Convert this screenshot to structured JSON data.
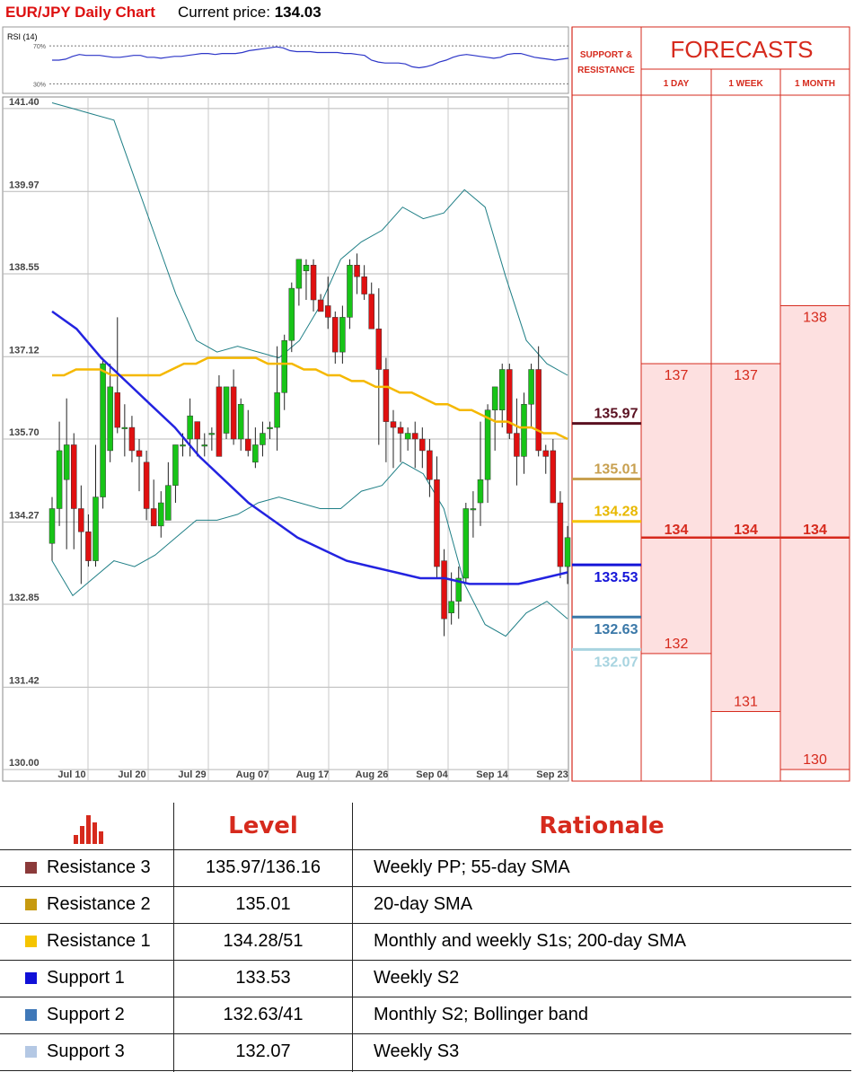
{
  "header": {
    "title": "EUR/JPY Daily Chart",
    "price_label": "Current price:",
    "price_value": "134.03"
  },
  "rsi": {
    "label": "RSI (14)",
    "levels": [
      "70%",
      "30%"
    ],
    "values": [
      55,
      55,
      56,
      59,
      61,
      60,
      60,
      60,
      59,
      58,
      58,
      59,
      60,
      60,
      58,
      58,
      57,
      58,
      59,
      59,
      60,
      61,
      62,
      62,
      61,
      62,
      62,
      62,
      63,
      65,
      66,
      67,
      68,
      69,
      68,
      65,
      64,
      64,
      64,
      63,
      63,
      63,
      63,
      62,
      62,
      61,
      60,
      55,
      53,
      52,
      52,
      52,
      51,
      48,
      47,
      48,
      50,
      53,
      55,
      58,
      60,
      61,
      60,
      59,
      58,
      57,
      58,
      61,
      62,
      62,
      60,
      58,
      57,
      56,
      55,
      56,
      57
    ]
  },
  "chart_data": {
    "type": "candlestick",
    "title": "EUR/JPY Daily Chart",
    "ylim": [
      129.8,
      141.6
    ],
    "yticks": [
      "141.40",
      "139.97",
      "138.55",
      "137.12",
      "135.70",
      "134.27",
      "132.85",
      "131.42",
      "130.00"
    ],
    "xticks": [
      "Jul 10",
      "Jul 20",
      "Jul 29",
      "Aug 07",
      "Aug 17",
      "Aug 26",
      "Sep 04",
      "Sep 14",
      "Sep 23"
    ],
    "candles": [
      {
        "o": 133.9,
        "h": 134.7,
        "l": 133.6,
        "c": 134.5
      },
      {
        "o": 134.5,
        "h": 136.0,
        "l": 134.2,
        "c": 135.5
      },
      {
        "o": 135.0,
        "h": 136.4,
        "l": 133.8,
        "c": 135.6
      },
      {
        "o": 135.6,
        "h": 135.8,
        "l": 133.8,
        "c": 134.5
      },
      {
        "o": 134.5,
        "h": 134.9,
        "l": 133.2,
        "c": 134.1
      },
      {
        "o": 134.1,
        "h": 134.4,
        "l": 133.5,
        "c": 133.6
      },
      {
        "o": 133.6,
        "h": 135.6,
        "l": 133.5,
        "c": 134.7
      },
      {
        "o": 134.7,
        "h": 137.1,
        "l": 134.5,
        "c": 137.0
      },
      {
        "o": 135.5,
        "h": 137.0,
        "l": 135.3,
        "c": 136.6
      },
      {
        "o": 136.5,
        "h": 137.8,
        "l": 135.8,
        "c": 135.9
      },
      {
        "o": 135.9,
        "h": 136.3,
        "l": 135.4,
        "c": 135.9
      },
      {
        "o": 135.9,
        "h": 136.1,
        "l": 135.3,
        "c": 135.5
      },
      {
        "o": 135.5,
        "h": 135.7,
        "l": 134.8,
        "c": 135.4
      },
      {
        "o": 135.3,
        "h": 135.5,
        "l": 134.3,
        "c": 134.5
      },
      {
        "o": 134.5,
        "h": 135.0,
        "l": 134.2,
        "c": 134.2
      },
      {
        "o": 134.2,
        "h": 134.8,
        "l": 134.0,
        "c": 134.6
      },
      {
        "o": 134.3,
        "h": 135.3,
        "l": 134.3,
        "c": 134.9
      },
      {
        "o": 134.9,
        "h": 135.6,
        "l": 134.6,
        "c": 135.6
      },
      {
        "o": 135.6,
        "h": 135.8,
        "l": 135.4,
        "c": 135.6
      },
      {
        "o": 135.7,
        "h": 136.4,
        "l": 135.4,
        "c": 136.1
      },
      {
        "o": 136.0,
        "h": 135.9,
        "l": 135.4,
        "c": 135.7
      },
      {
        "o": 135.6,
        "h": 135.8,
        "l": 135.4,
        "c": 135.6
      },
      {
        "o": 135.8,
        "h": 135.9,
        "l": 135.5,
        "c": 135.8
      },
      {
        "o": 136.6,
        "h": 136.8,
        "l": 135.5,
        "c": 135.4
      },
      {
        "o": 135.8,
        "h": 136.6,
        "l": 135.7,
        "c": 136.6
      },
      {
        "o": 136.6,
        "h": 136.9,
        "l": 135.6,
        "c": 135.7
      },
      {
        "o": 135.7,
        "h": 136.4,
        "l": 135.5,
        "c": 136.3
      },
      {
        "o": 135.7,
        "h": 136.2,
        "l": 135.4,
        "c": 135.5
      },
      {
        "o": 135.3,
        "h": 135.9,
        "l": 135.2,
        "c": 135.6
      },
      {
        "o": 135.6,
        "h": 136.0,
        "l": 135.4,
        "c": 135.8
      },
      {
        "o": 135.9,
        "h": 136.0,
        "l": 135.7,
        "c": 135.9
      },
      {
        "o": 135.9,
        "h": 137.3,
        "l": 135.5,
        "c": 136.5
      },
      {
        "o": 136.5,
        "h": 137.5,
        "l": 136.2,
        "c": 137.4
      },
      {
        "o": 137.4,
        "h": 138.4,
        "l": 137.2,
        "c": 138.3
      },
      {
        "o": 138.3,
        "h": 138.8,
        "l": 138.0,
        "c": 138.8
      },
      {
        "o": 138.6,
        "h": 138.8,
        "l": 138.1,
        "c": 138.7
      },
      {
        "o": 138.7,
        "h": 138.8,
        "l": 137.9,
        "c": 138.1
      },
      {
        "o": 138.1,
        "h": 138.2,
        "l": 137.9,
        "c": 137.9
      },
      {
        "o": 138.0,
        "h": 138.5,
        "l": 137.6,
        "c": 137.8
      },
      {
        "o": 137.8,
        "h": 137.9,
        "l": 137.0,
        "c": 137.2
      },
      {
        "o": 137.2,
        "h": 138.0,
        "l": 137.0,
        "c": 137.8
      },
      {
        "o": 137.8,
        "h": 138.8,
        "l": 137.6,
        "c": 138.7
      },
      {
        "o": 138.7,
        "h": 138.9,
        "l": 138.2,
        "c": 138.5
      },
      {
        "o": 138.5,
        "h": 138.7,
        "l": 138.1,
        "c": 138.2
      },
      {
        "o": 138.2,
        "h": 138.4,
        "l": 137.6,
        "c": 137.6
      },
      {
        "o": 137.6,
        "h": 138.3,
        "l": 135.6,
        "c": 136.9
      },
      {
        "o": 136.9,
        "h": 137.1,
        "l": 135.3,
        "c": 136.0
      },
      {
        "o": 136.0,
        "h": 136.2,
        "l": 135.2,
        "c": 135.9
      },
      {
        "o": 135.9,
        "h": 136.0,
        "l": 135.3,
        "c": 135.8
      },
      {
        "o": 135.7,
        "h": 135.9,
        "l": 135.5,
        "c": 135.8
      },
      {
        "o": 135.8,
        "h": 136.0,
        "l": 135.2,
        "c": 135.7
      },
      {
        "o": 135.7,
        "h": 135.9,
        "l": 135.2,
        "c": 135.5
      },
      {
        "o": 135.5,
        "h": 135.7,
        "l": 134.7,
        "c": 135.0
      },
      {
        "o": 135.0,
        "h": 135.4,
        "l": 133.3,
        "c": 133.5
      },
      {
        "o": 133.6,
        "h": 133.8,
        "l": 132.3,
        "c": 132.6
      },
      {
        "o": 132.7,
        "h": 133.4,
        "l": 132.5,
        "c": 132.9
      },
      {
        "o": 132.9,
        "h": 133.5,
        "l": 132.6,
        "c": 133.3
      },
      {
        "o": 133.3,
        "h": 134.6,
        "l": 133.2,
        "c": 134.5
      },
      {
        "o": 134.5,
        "h": 134.8,
        "l": 134.0,
        "c": 134.5
      },
      {
        "o": 134.6,
        "h": 136.0,
        "l": 134.2,
        "c": 135.0
      },
      {
        "o": 135.0,
        "h": 136.3,
        "l": 134.6,
        "c": 136.2
      },
      {
        "o": 136.2,
        "h": 136.6,
        "l": 135.5,
        "c": 136.6
      },
      {
        "o": 136.2,
        "h": 137.0,
        "l": 135.9,
        "c": 136.9
      },
      {
        "o": 136.9,
        "h": 137.0,
        "l": 135.7,
        "c": 135.8
      },
      {
        "o": 135.8,
        "h": 136.4,
        "l": 134.9,
        "c": 135.4
      },
      {
        "o": 135.4,
        "h": 136.5,
        "l": 135.1,
        "c": 136.3
      },
      {
        "o": 136.3,
        "h": 137.0,
        "l": 135.9,
        "c": 136.9
      },
      {
        "o": 136.9,
        "h": 137.3,
        "l": 135.4,
        "c": 135.5
      },
      {
        "o": 135.5,
        "h": 135.6,
        "l": 135.1,
        "c": 135.4
      },
      {
        "o": 135.5,
        "h": 135.7,
        "l": 134.6,
        "c": 134.6
      },
      {
        "o": 134.6,
        "h": 134.8,
        "l": 133.3,
        "c": 133.5
      },
      {
        "o": 133.5,
        "h": 134.2,
        "l": 133.2,
        "c": 134.0
      }
    ],
    "sma55": [
      136.8,
      136.8,
      136.9,
      136.9,
      136.9,
      136.8,
      136.8,
      136.8,
      136.8,
      136.8,
      136.9,
      137.0,
      137.0,
      137.1,
      137.1,
      137.1,
      137.1,
      137.1,
      137.0,
      137.0,
      137.0,
      136.9,
      136.9,
      136.8,
      136.8,
      136.7,
      136.7,
      136.6,
      136.6,
      136.5,
      136.5,
      136.4,
      136.3,
      136.3,
      136.2,
      136.2,
      136.1,
      136.0,
      136.0,
      135.9,
      135.9,
      135.8,
      135.8,
      135.7
    ],
    "sma200": [
      137.9,
      137.6,
      137.1,
      136.7,
      136.3,
      135.9,
      135.4,
      135.0,
      134.6,
      134.3,
      134.0,
      133.8,
      133.6,
      133.5,
      133.4,
      133.3,
      133.3,
      133.2,
      133.2,
      133.2,
      133.3,
      133.4
    ],
    "boll_upper": [
      141.5,
      141.4,
      141.3,
      141.2,
      140.2,
      139.2,
      138.2,
      137.4,
      137.2,
      137.3,
      137.2,
      137.1,
      137.4,
      138.0,
      138.8,
      139.1,
      139.3,
      139.7,
      139.5,
      139.6,
      140.0,
      139.7,
      138.5,
      137.4,
      137.0,
      136.8
    ],
    "boll_lower": [
      133.6,
      133.0,
      133.3,
      133.6,
      133.5,
      133.7,
      134.0,
      134.3,
      134.3,
      134.4,
      134.6,
      134.7,
      134.6,
      134.5,
      134.5,
      134.8,
      134.9,
      135.3,
      135.1,
      134.5,
      133.2,
      132.5,
      132.3,
      132.7,
      132.9,
      132.6
    ],
    "levels": [
      {
        "label": "135.97",
        "value": 135.97,
        "color": "#5a1020",
        "text_color": "#5a1020"
      },
      {
        "label": "135.01",
        "value": 135.01,
        "color": "#c8a050",
        "text_color": "#c8a050"
      },
      {
        "label": "134.28",
        "value": 134.28,
        "color": "#f5c400",
        "text_color": "#e8b800"
      },
      {
        "label": "133.53",
        "value": 133.53,
        "color": "#1515d8",
        "text_color": "#1515d8"
      },
      {
        "label": "132.63",
        "value": 132.63,
        "color": "#3a78a8",
        "text_color": "#3a78a8"
      },
      {
        "label": "132.07",
        "value": 132.07,
        "color": "#a8d4e0",
        "text_color": "#a8d4e0"
      }
    ]
  },
  "forecasts": {
    "support_resistance_label": [
      "SUPPORT &",
      "RESISTANCE"
    ],
    "title": "FORECASTS",
    "columns": [
      {
        "label": "1 DAY",
        "high": "137",
        "mid": "134",
        "low": "132",
        "high_v": 137,
        "low_v": 132
      },
      {
        "label": "1 WEEK",
        "high": "137",
        "mid": "134",
        "low": "131",
        "high_v": 137,
        "low_v": 131
      },
      {
        "label": "1 MONTH",
        "high": "138",
        "mid": "134",
        "low": "130",
        "high_v": 138,
        "low_v": 130
      }
    ],
    "mid_value": 134
  },
  "table": {
    "headers": {
      "level": "Level",
      "rationale": "Rationale"
    },
    "rows": [
      {
        "name": "Resistance 3",
        "swatch": "#8b3a3a",
        "level": "135.97/136.16",
        "rationale": "Weekly PP; 55-day SMA"
      },
      {
        "name": "Resistance 2",
        "swatch": "#c79a10",
        "level": "135.01",
        "rationale": "20-day SMA"
      },
      {
        "name": "Resistance 1",
        "swatch": "#f5c400",
        "level": "134.28/51",
        "rationale": "Monthly and weekly S1s; 200-day SMA"
      },
      {
        "name": "Support 1",
        "swatch": "#1010d8",
        "level": "133.53",
        "rationale": "Weekly S2"
      },
      {
        "name": "Support 2",
        "swatch": "#3f78b8",
        "level": "132.63/41",
        "rationale": "Monthly S2; Bollinger band"
      },
      {
        "name": "Support 3",
        "swatch": "#b4c8e4",
        "level": "132.07",
        "rationale": "Weekly S3"
      }
    ]
  }
}
